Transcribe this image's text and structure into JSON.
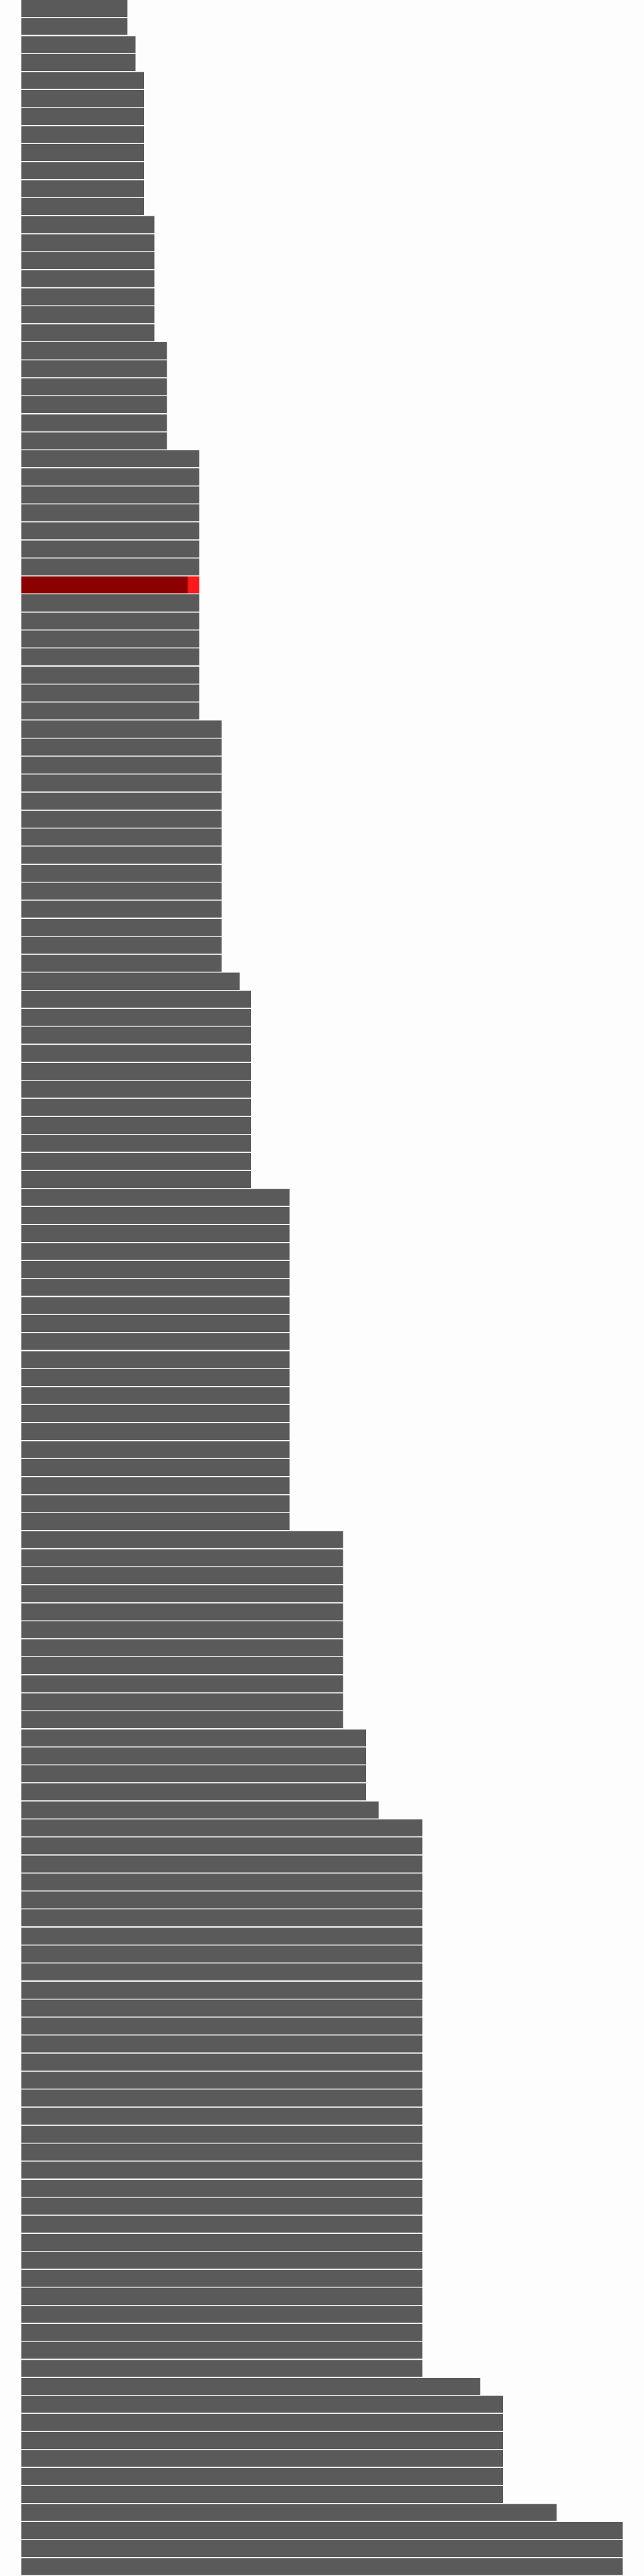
{
  "chart_data": {
    "type": "bar",
    "orientation": "horizontal",
    "sorted": "ascending",
    "title": "",
    "xlabel": "",
    "ylabel": "",
    "grid": false,
    "legend": "none",
    "colors": {
      "bar": "#5a5a5a",
      "highlight": "#8b0000",
      "highlight_end": "#ff1a1a",
      "background": "#fdfdfd",
      "separator": "#ffffff"
    },
    "highlight_index": 32,
    "xlim": [
      0,
      100
    ],
    "values": [
      17.6,
      17.6,
      19.0,
      19.0,
      20.4,
      20.4,
      20.4,
      20.4,
      20.4,
      20.4,
      20.4,
      20.4,
      22.1,
      22.1,
      22.1,
      22.1,
      22.1,
      22.1,
      22.1,
      24.2,
      24.2,
      24.2,
      24.2,
      24.2,
      24.2,
      29.6,
      29.6,
      29.6,
      29.6,
      29.6,
      29.6,
      29.6,
      29.6,
      29.6,
      29.6,
      29.6,
      29.6,
      29.6,
      29.6,
      29.6,
      33.3,
      33.3,
      33.3,
      33.3,
      33.3,
      33.3,
      33.3,
      33.3,
      33.3,
      33.3,
      33.3,
      33.3,
      33.3,
      33.3,
      36.3,
      38.2,
      38.2,
      38.2,
      38.2,
      38.2,
      38.2,
      38.2,
      38.2,
      38.2,
      38.2,
      38.2,
      44.6,
      44.6,
      44.6,
      44.6,
      44.6,
      44.6,
      44.6,
      44.6,
      44.6,
      44.6,
      44.6,
      44.6,
      44.6,
      44.6,
      44.6,
      44.6,
      44.6,
      44.6,
      44.6,
      53.5,
      53.5,
      53.5,
      53.5,
      53.5,
      53.5,
      53.5,
      53.5,
      53.5,
      53.5,
      53.5,
      57.3,
      57.3,
      57.3,
      57.3,
      59.4,
      66.7,
      66.7,
      66.7,
      66.7,
      66.7,
      66.7,
      66.7,
      66.7,
      66.7,
      66.7,
      66.7,
      66.7,
      66.7,
      66.7,
      66.7,
      66.7,
      66.7,
      66.7,
      66.7,
      66.7,
      66.7,
      66.7,
      66.7,
      66.7,
      66.7,
      66.7,
      66.7,
      66.7,
      66.7,
      66.7,
      66.7,
      76.3,
      80.1,
      80.1,
      80.1,
      80.1,
      80.1,
      80.1,
      89.0,
      100.0,
      100.0,
      100.0
    ]
  }
}
